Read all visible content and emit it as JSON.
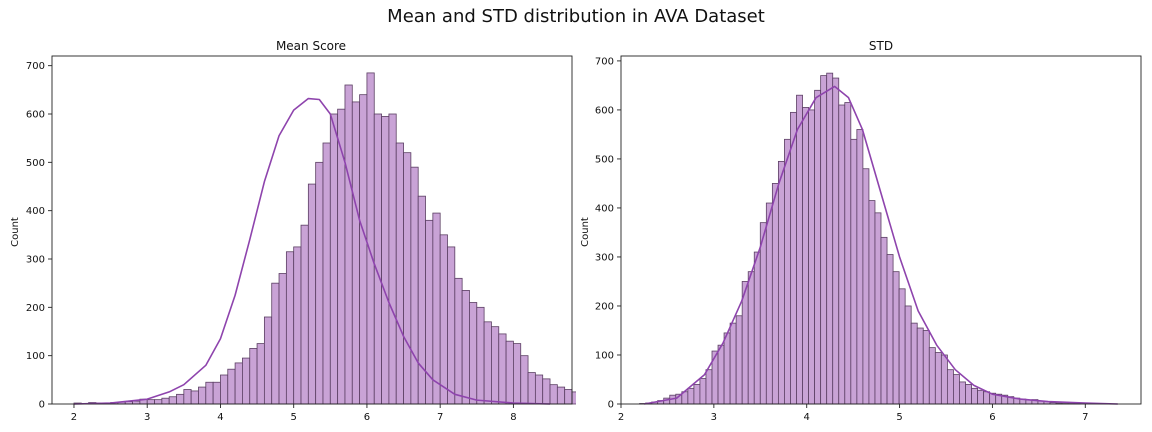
{
  "figure": {
    "suptitle": "Mean and STD distribution in AVA Dataset"
  },
  "colors": {
    "bar_fill": "#c9a3d6",
    "bar_edge": "#5b3f63",
    "kde_line": "#8e44ad"
  },
  "chart_data": [
    {
      "type": "bar",
      "subtype": "histogram_with_kde",
      "title": "Mean Score",
      "xlabel": "",
      "ylabel": "Count",
      "xlim": [
        1.7,
        8.8
      ],
      "ylim": [
        0,
        720
      ],
      "xticks": [
        2,
        3,
        4,
        5,
        6,
        7,
        8
      ],
      "yticks": [
        0,
        100,
        200,
        300,
        400,
        500,
        600,
        700
      ],
      "grid": false,
      "bin_start": 2.0,
      "bin_width": 0.1,
      "values": [
        2,
        1,
        3,
        2,
        2,
        3,
        4,
        5,
        6,
        10,
        9,
        9,
        12,
        15,
        20,
        30,
        27,
        35,
        45,
        45,
        60,
        72,
        85,
        95,
        115,
        125,
        180,
        250,
        270,
        315,
        325,
        370,
        455,
        500,
        540,
        600,
        610,
        660,
        625,
        640,
        685,
        600,
        595,
        600,
        540,
        520,
        490,
        430,
        380,
        395,
        350,
        325,
        260,
        235,
        210,
        200,
        170,
        160,
        145,
        130,
        125,
        100,
        65,
        60,
        52,
        40,
        35,
        30,
        25,
        22,
        18,
        15,
        10,
        8,
        7,
        5,
        4,
        3,
        3,
        2,
        1,
        1,
        1,
        1,
        1
      ],
      "kde": {
        "x": [
          2.0,
          2.5,
          3.0,
          3.3,
          3.5,
          3.8,
          4.0,
          4.2,
          4.4,
          4.6,
          4.8,
          5.0,
          5.2,
          5.35,
          5.5,
          5.7,
          5.9,
          6.1,
          6.3,
          6.5,
          6.7,
          6.9,
          7.2,
          7.5,
          8.0,
          8.5
        ],
        "y": [
          0,
          2,
          10,
          25,
          40,
          80,
          135,
          225,
          340,
          460,
          555,
          608,
          632,
          630,
          600,
          500,
          380,
          290,
          210,
          140,
          85,
          50,
          20,
          8,
          2,
          0
        ]
      }
    },
    {
      "type": "bar",
      "subtype": "histogram_with_kde",
      "title": "STD",
      "xlabel": "",
      "ylabel": "Count",
      "xlim": [
        2.0,
        7.6
      ],
      "ylim": [
        0,
        710
      ],
      "xticks": [
        2,
        3,
        4,
        5,
        6,
        7
      ],
      "yticks": [
        0,
        100,
        200,
        300,
        400,
        500,
        600,
        700
      ],
      "grid": false,
      "bin_start": 2.2,
      "bin_width": 0.065,
      "values": [
        1,
        2,
        4,
        7,
        12,
        18,
        20,
        25,
        32,
        40,
        52,
        70,
        108,
        120,
        145,
        165,
        180,
        250,
        270,
        310,
        370,
        410,
        450,
        495,
        540,
        595,
        630,
        605,
        600,
        640,
        670,
        675,
        665,
        610,
        615,
        540,
        560,
        480,
        415,
        390,
        340,
        305,
        270,
        235,
        200,
        165,
        155,
        150,
        115,
        105,
        100,
        70,
        60,
        45,
        40,
        32,
        28,
        25,
        22,
        20,
        18,
        15,
        12,
        10,
        8,
        9,
        6,
        5,
        3,
        2,
        1,
        1,
        1
      ],
      "kde": {
        "x": [
          2.25,
          2.6,
          2.9,
          3.1,
          3.3,
          3.5,
          3.7,
          3.9,
          4.1,
          4.3,
          4.45,
          4.6,
          4.8,
          5.0,
          5.2,
          5.4,
          5.6,
          5.8,
          6.0,
          6.3,
          6.6,
          7.0,
          7.35
        ],
        "y": [
          0,
          12,
          60,
          125,
          210,
          320,
          450,
          560,
          625,
          648,
          625,
          560,
          430,
          300,
          190,
          120,
          70,
          38,
          20,
          10,
          5,
          2,
          0
        ]
      }
    }
  ]
}
